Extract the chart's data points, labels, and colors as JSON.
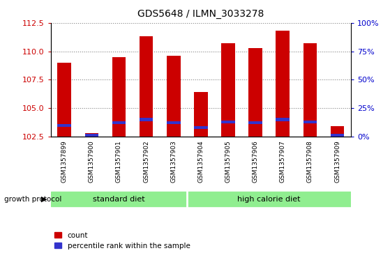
{
  "title": "GDS5648 / ILMN_3033278",
  "samples": [
    "GSM1357899",
    "GSM1357900",
    "GSM1357901",
    "GSM1357902",
    "GSM1357903",
    "GSM1357904",
    "GSM1357905",
    "GSM1357906",
    "GSM1357907",
    "GSM1357908",
    "GSM1357909"
  ],
  "count_values": [
    109.0,
    102.8,
    109.5,
    111.3,
    109.6,
    106.4,
    110.7,
    110.3,
    111.8,
    110.7,
    103.4
  ],
  "percentile_values": [
    10,
    1,
    12,
    15,
    12,
    8,
    13,
    12,
    15,
    13,
    1
  ],
  "ymin": 102.5,
  "ymax": 112.5,
  "yticks": [
    102.5,
    105.0,
    107.5,
    110.0,
    112.5
  ],
  "right_yticks": [
    0,
    25,
    50,
    75,
    100
  ],
  "right_ytick_labels": [
    "0%",
    "25%",
    "50%",
    "75%",
    "100%"
  ],
  "bar_color": "#cc0000",
  "percentile_color": "#3333cc",
  "bar_width": 0.5,
  "group1_label": "standard diet",
  "group1_count": 5,
  "group2_label": "high calorie diet",
  "group2_count": 6,
  "group_label_prefix": "growth protocol",
  "xlabel_color": "#cc0000",
  "right_axis_color": "#0000cc",
  "bg_color_plot": "#e8e8e8",
  "bg_color_group": "#90ee90",
  "legend_count_label": "count",
  "legend_percentile_label": "percentile rank within the sample",
  "xtick_bg_color": "#d0d0d0"
}
